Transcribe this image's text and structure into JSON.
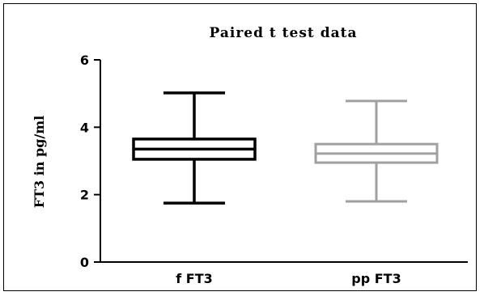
{
  "chart_data": {
    "type": "box",
    "title": "Paired t test data",
    "xlabel": "",
    "ylabel": "FT3 in pg/ml",
    "ylim": [
      0,
      6
    ],
    "yticks": [
      0,
      2,
      4,
      6
    ],
    "grid": false,
    "categories": [
      "f FT3",
      "pp FT3"
    ],
    "series": [
      {
        "name": "f FT3",
        "min": 1.75,
        "q1": 3.05,
        "median": 3.35,
        "q3": 3.65,
        "max": 5.02,
        "color": "#000000"
      },
      {
        "name": "pp FT3",
        "min": 1.8,
        "q1": 2.95,
        "median": 3.22,
        "q3": 3.5,
        "max": 4.78,
        "color": "#a0a0a0"
      }
    ]
  }
}
